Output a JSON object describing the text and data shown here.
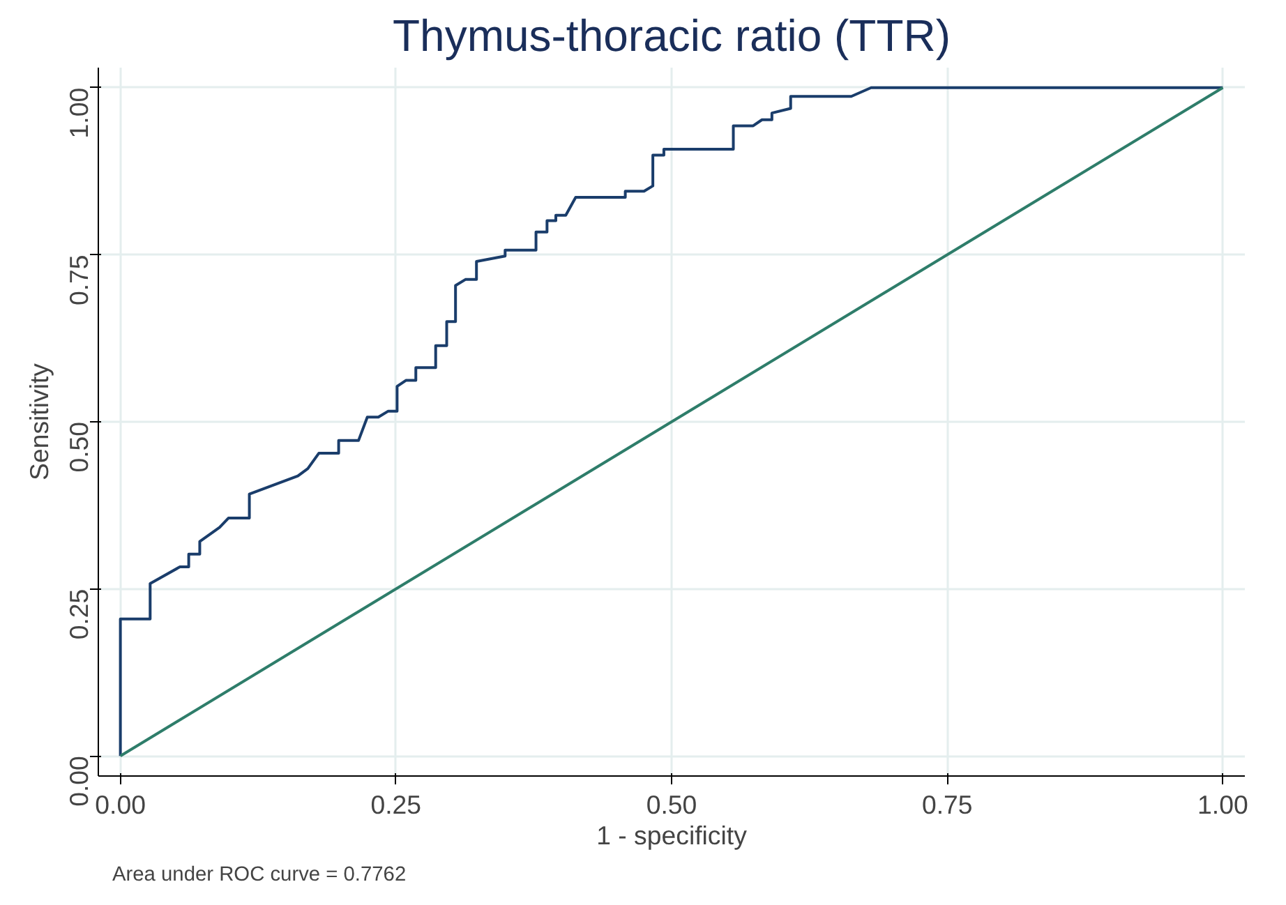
{
  "chart_data": {
    "type": "line",
    "title": "Thymus-thoracic ratio (TTR)",
    "xlabel": "1 - specificity",
    "ylabel": "Sensitivity",
    "annotations": [
      "Area under ROC curve = 0.7762"
    ],
    "xlim": [
      -0.02,
      1.02
    ],
    "ylim": [
      -0.03,
      1.03
    ],
    "xticks": [
      {
        "value": 0,
        "label": "0.00"
      },
      {
        "value": 0.25,
        "label": "0.25"
      },
      {
        "value": 0.5,
        "label": "0.50"
      },
      {
        "value": 0.75,
        "label": "0.75"
      },
      {
        "value": 1,
        "label": "1.00"
      }
    ],
    "yticks": [
      {
        "value": 0,
        "label": "0.00"
      },
      {
        "value": 0.25,
        "label": "0.25"
      },
      {
        "value": 0.5,
        "label": "0.50"
      },
      {
        "value": 0.75,
        "label": "0.75"
      },
      {
        "value": 1,
        "label": "1.00"
      }
    ],
    "grid": true,
    "marker": "none",
    "line_style": "solid",
    "series": [
      {
        "color": "#1a3d6b",
        "x": [
          0,
          0,
          0.027,
          0.027,
          0.054,
          0.062,
          0.062,
          0.072,
          0.072,
          0.09,
          0.098,
          0.117,
          0.117,
          0.161,
          0.17,
          0.18,
          0.198,
          0.198,
          0.216,
          0.224,
          0.234,
          0.243,
          0.251,
          0.251,
          0.259,
          0.268,
          0.268,
          0.286,
          0.286,
          0.296,
          0.296,
          0.304,
          0.304,
          0.313,
          0.323,
          0.323,
          0.349,
          0.349,
          0.377,
          0.377,
          0.387,
          0.387,
          0.395,
          0.395,
          0.404,
          0.413,
          0.458,
          0.458,
          0.475,
          0.483,
          0.483,
          0.493,
          0.493,
          0.556,
          0.556,
          0.574,
          0.582,
          0.591,
          0.591,
          0.608,
          0.608,
          0.663,
          0.681,
          1
        ],
        "values": [
          0,
          0.205,
          0.205,
          0.258,
          0.283,
          0.283,
          0.302,
          0.302,
          0.321,
          0.342,
          0.356,
          0.356,
          0.392,
          0.419,
          0.43,
          0.453,
          0.453,
          0.472,
          0.472,
          0.507,
          0.507,
          0.516,
          0.516,
          0.553,
          0.562,
          0.562,
          0.581,
          0.581,
          0.614,
          0.614,
          0.65,
          0.65,
          0.704,
          0.713,
          0.713,
          0.74,
          0.748,
          0.757,
          0.757,
          0.784,
          0.784,
          0.801,
          0.801,
          0.809,
          0.809,
          0.836,
          0.836,
          0.845,
          0.845,
          0.853,
          0.899,
          0.899,
          0.908,
          0.908,
          0.943,
          0.943,
          0.952,
          0.952,
          0.962,
          0.969,
          0.987,
          0.987,
          1,
          1
        ]
      },
      {
        "color": "#2e7d6a",
        "x": [
          0,
          1
        ],
        "values": [
          0,
          1
        ]
      }
    ]
  }
}
